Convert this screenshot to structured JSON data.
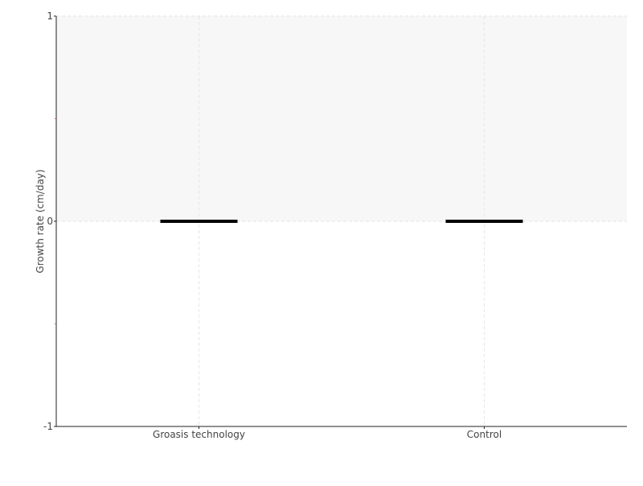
{
  "chart_data": {
    "type": "box",
    "categories": [
      "Groasis technology",
      "Control"
    ],
    "series": [
      {
        "values": [
          {
            "min": 0,
            "q1": 0,
            "median": 0,
            "q3": 0,
            "max": 0
          },
          {
            "min": 0,
            "q1": 0,
            "median": 0,
            "q3": 0,
            "max": 0
          }
        ]
      }
    ],
    "ylabel": "Growth rate (cm/day)",
    "xlabel": "",
    "ylim": [
      -1,
      1
    ],
    "yticks": [
      "1",
      "0",
      "-1"
    ],
    "yminor_ticks": [
      0.5,
      -0.5
    ],
    "shaded_band": [
      0,
      1
    ],
    "grid": true,
    "colors": {
      "band": "#f7f7f7",
      "box": "#000000",
      "minor_tick": "#e06060",
      "grid": "#e6e6e6"
    }
  }
}
